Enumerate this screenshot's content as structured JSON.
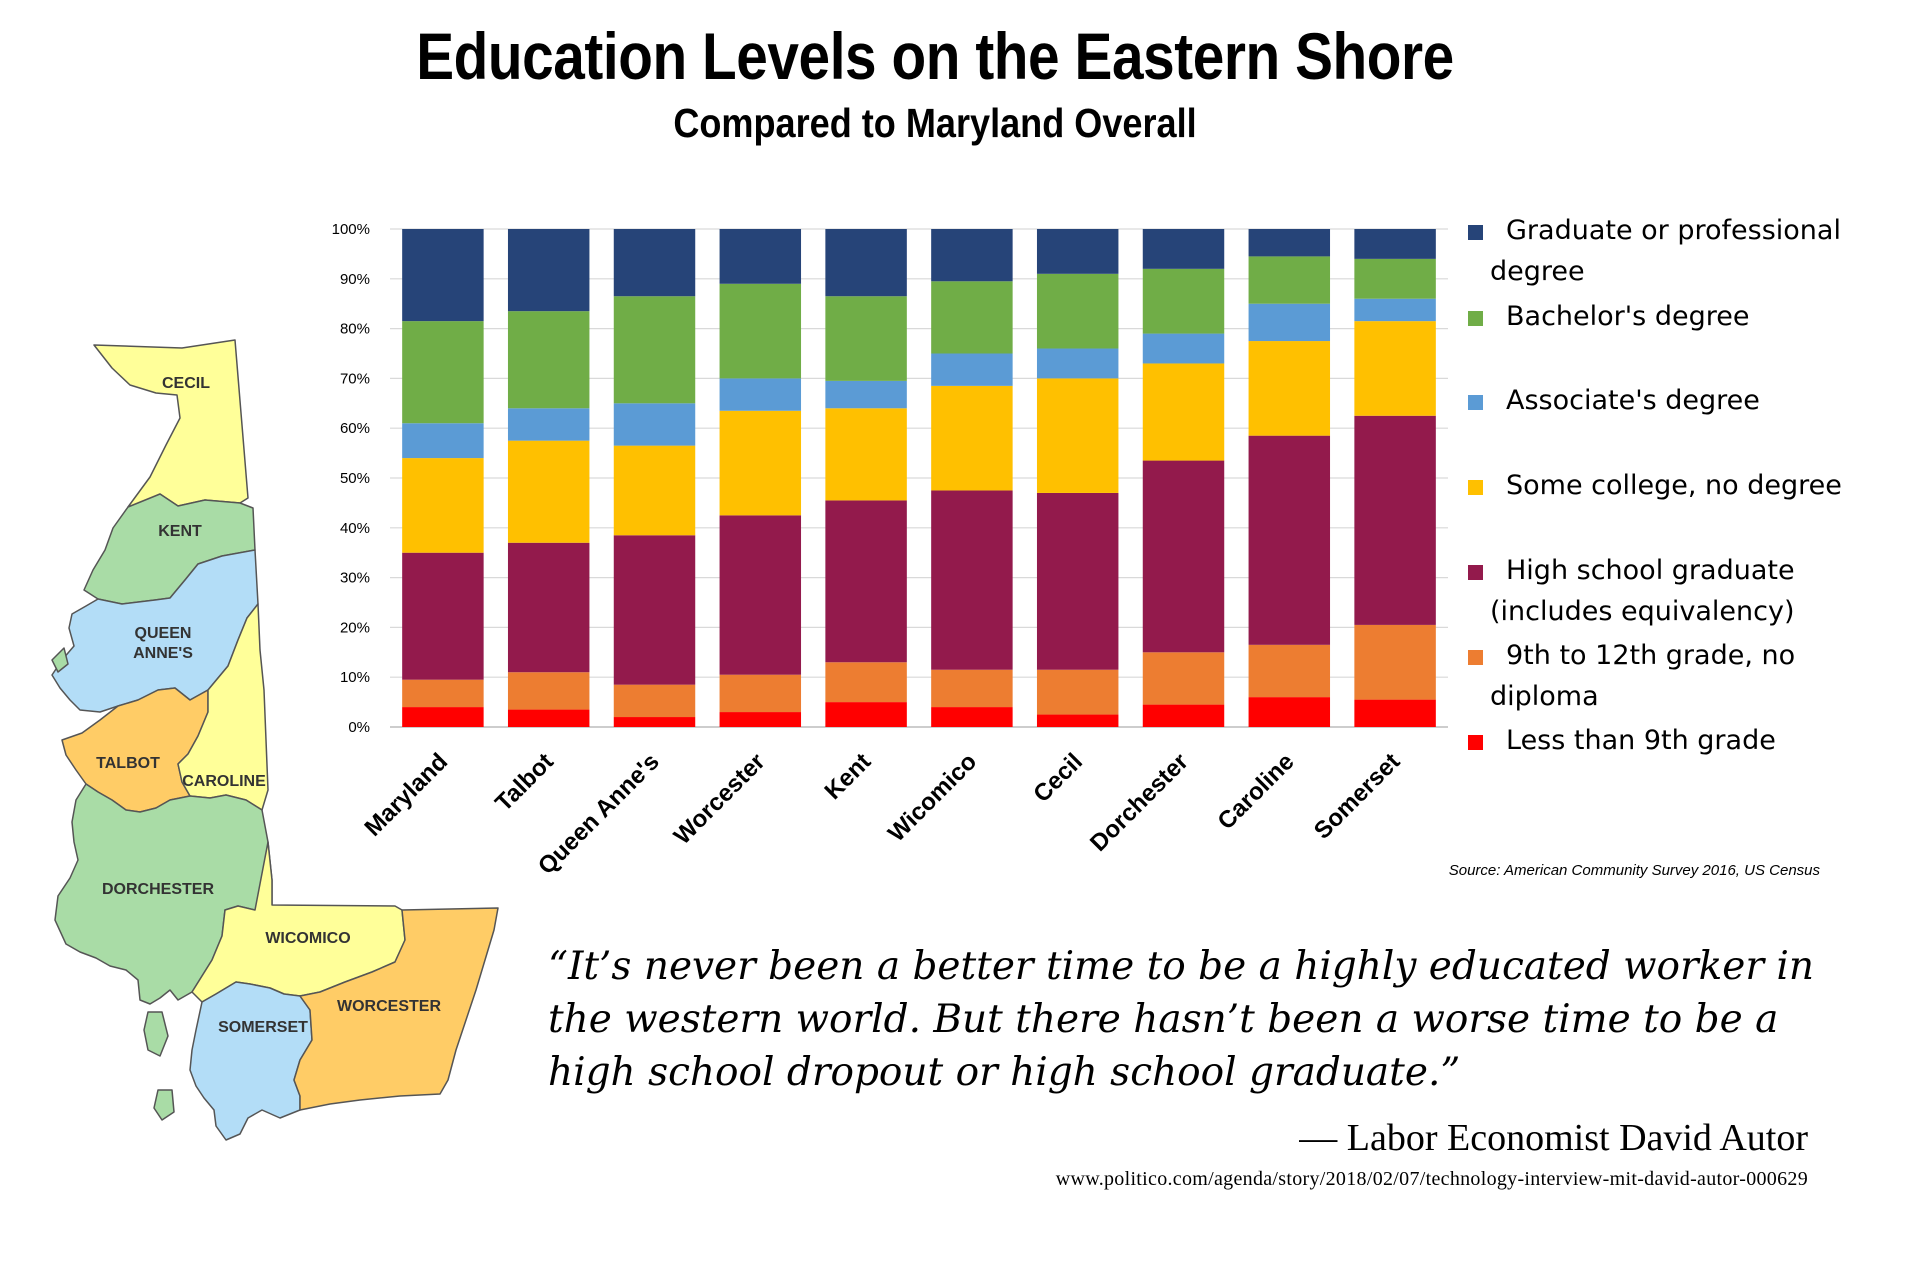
{
  "header": {
    "title": "Education Levels on the Eastern Shore",
    "subtitle": "Compared to Maryland Overall"
  },
  "map": {
    "counties": [
      {
        "name": "CECIL",
        "color": "#FFFF99"
      },
      {
        "name": "KENT",
        "color": "#A9DCA6"
      },
      {
        "name": "QUEEN ANNE'S",
        "color": "#B3DDF7"
      },
      {
        "name": "TALBOT",
        "color": "#FFCC66"
      },
      {
        "name": "CAROLINE",
        "color": "#FFFF99"
      },
      {
        "name": "DORCHESTER",
        "color": "#A9DCA6"
      },
      {
        "name": "WICOMICO",
        "color": "#FFFF99"
      },
      {
        "name": "SOMERSET",
        "color": "#B3DDF7"
      },
      {
        "name": "WORCESTER",
        "color": "#FFCC66"
      }
    ]
  },
  "chart_data": {
    "type": "bar",
    "stacked": true,
    "percent": true,
    "categories": [
      "Maryland",
      "Talbot",
      "Queen Anne's",
      "Worcester",
      "Kent",
      "Wicomico",
      "Cecil",
      "Dorchester",
      "Caroline",
      "Somerset"
    ],
    "series": [
      {
        "name": "Less than 9th grade",
        "color": "#FF0000",
        "values": [
          4,
          3.5,
          2,
          3,
          5,
          4,
          2.5,
          4.5,
          6,
          5.5
        ]
      },
      {
        "name": "9th to 12th grade, no diploma",
        "color": "#ED7D31",
        "values": [
          5.5,
          7.5,
          6.5,
          7.5,
          8,
          7.5,
          9,
          10.5,
          10.5,
          15
        ]
      },
      {
        "name": "High school graduate (includes equivalency)",
        "color": "#931A4C",
        "values": [
          25.5,
          26,
          30,
          32,
          32.5,
          36,
          35.5,
          38.5,
          42,
          42
        ]
      },
      {
        "name": "Some college, no degree",
        "color": "#FFC000",
        "values": [
          19,
          20.5,
          18,
          21,
          18.5,
          21,
          23,
          19.5,
          19,
          19
        ]
      },
      {
        "name": "Associate's degree",
        "color": "#5B9BD5",
        "values": [
          7,
          6.5,
          8.5,
          6.5,
          5.5,
          6.5,
          6,
          6,
          7.5,
          4.5
        ]
      },
      {
        "name": "Bachelor's degree",
        "color": "#70AD47",
        "values": [
          20.5,
          19.5,
          21.5,
          19,
          17,
          14.5,
          15,
          13,
          9.5,
          8
        ]
      },
      {
        "name": "Graduate or professional degree",
        "color": "#264478",
        "values": [
          18.5,
          16.5,
          13.5,
          11,
          13.5,
          10.5,
          9,
          8,
          5.5,
          6
        ]
      }
    ],
    "y_ticks": [
      "0%",
      "10%",
      "20%",
      "30%",
      "40%",
      "50%",
      "60%",
      "70%",
      "80%",
      "90%",
      "100%"
    ],
    "ylim": [
      0,
      100
    ],
    "grid": true,
    "legend_position": "right",
    "legend_order": [
      "Graduate or professional degree",
      "Bachelor's degree",
      "Associate's degree",
      "Some college, no degree",
      "High school graduate (includes equivalency)",
      "9th to 12th grade, no diploma",
      "Less than 9th grade"
    ],
    "source": "Source: American Community Survey 2016, US Census"
  },
  "quote": {
    "text": "“It’s never been a better time to be a highly educated worker in the western world. But there hasn’t been a worse time to be a high school dropout or high school graduate.”",
    "attribution": "— Labor Economist David Autor",
    "url": "www.politico.com/agenda/story/2018/02/07/technology-interview-mit-david-autor-000629"
  }
}
